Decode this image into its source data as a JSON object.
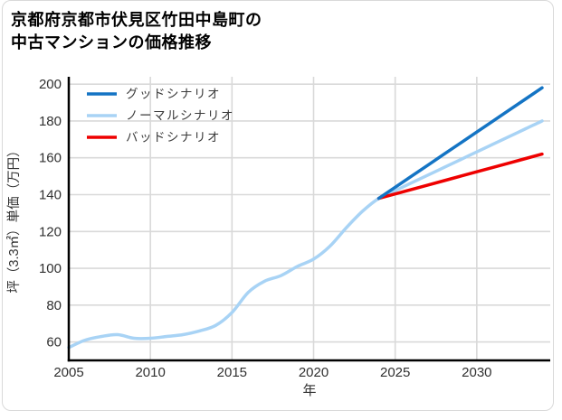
{
  "title": {
    "line1": "京都府京都市伏見区竹田中島町の",
    "line2": "中古マンションの価格推移"
  },
  "chart_data": {
    "type": "line",
    "title": "京都府京都市伏見区竹田中島町の中古マンションの価格推移",
    "xlabel": "年",
    "ylabel": "坪（3.3㎡）単価（万円）",
    "xlim": [
      2005,
      2034.5
    ],
    "ylim": [
      50,
      204
    ],
    "xticks": [
      2005,
      2010,
      2015,
      2020,
      2025,
      2030
    ],
    "yticks": [
      60,
      80,
      100,
      120,
      140,
      160,
      180,
      200
    ],
    "grid": true,
    "legend_position": "top-left-inside",
    "series": [
      {
        "name": "グッドシナリオ",
        "color": "#1474c4",
        "x": [
          2024,
          2025,
          2026,
          2027,
          2028,
          2029,
          2030,
          2031,
          2032,
          2033,
          2034
        ],
        "values": [
          138,
          144,
          150,
          156,
          162,
          168,
          174,
          180,
          186,
          192,
          198
        ]
      },
      {
        "name": "ノーマルシナリオ",
        "color": "#a8d3f5",
        "x": [
          2005,
          2006,
          2007,
          2008,
          2009,
          2010,
          2011,
          2012,
          2013,
          2014,
          2015,
          2016,
          2017,
          2018,
          2019,
          2020,
          2021,
          2022,
          2023,
          2024,
          2025,
          2026,
          2027,
          2028,
          2029,
          2030,
          2031,
          2032,
          2033,
          2034
        ],
        "values": [
          57,
          61,
          63,
          64,
          62,
          62,
          63,
          64,
          66,
          69,
          76,
          87,
          93,
          96,
          101,
          105,
          112,
          122,
          131,
          138,
          142.2,
          146.4,
          150.6,
          154.8,
          159,
          163.2,
          167.4,
          171.6,
          175.8,
          180
        ]
      },
      {
        "name": "バッドシナリオ",
        "color": "#ee0000",
        "x": [
          2024,
          2025,
          2026,
          2027,
          2028,
          2029,
          2030,
          2031,
          2032,
          2033,
          2034
        ],
        "values": [
          138,
          140.4,
          142.8,
          145.2,
          147.6,
          150,
          152.4,
          154.8,
          157.2,
          159.6,
          162
        ]
      }
    ],
    "styles": {
      "grid_color": "#d9d9d9",
      "axis_color": "#000000",
      "tick_label_color": "#303030",
      "legend_text_color": "#3a3a3a",
      "line_width": 3.5
    }
  }
}
